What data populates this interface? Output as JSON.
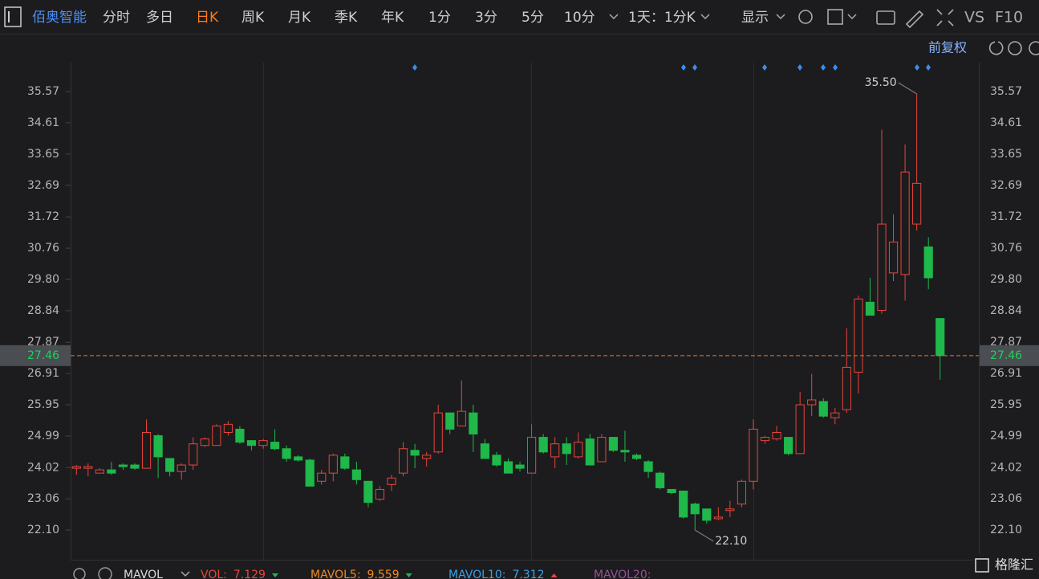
{
  "toolbar": {
    "stock": "佰奥智能",
    "periods": [
      "分时",
      "多日",
      "日K",
      "周K",
      "月K",
      "季K",
      "年K",
      "1分",
      "3分",
      "5分",
      "10分"
    ],
    "active": "日K",
    "range": "1天：1分K",
    "display": "显示",
    "vs": "VS",
    "f10": "F10"
  },
  "adjust": "前复权",
  "chart_data": {
    "type": "candlestick",
    "up_color": "#e8453c",
    "down_color": "#1fb84a",
    "last_color": "#e8742a",
    "ylim": [
      21.19,
      36.41
    ],
    "yticks": [
      35.57,
      34.61,
      33.65,
      32.69,
      31.72,
      30.76,
      {
        "value": 29.8,
        "label": "29.80"
      },
      28.84,
      27.87,
      26.91,
      25.95,
      24.99,
      24.02,
      23.06,
      {
        "value": 22.1,
        "label": "22.10"
      }
    ],
    "open": [
      24.0,
      24.0,
      23.85,
      23.95,
      24.1,
      24.1,
      24.0,
      25.0,
      24.3,
      23.9,
      24.1,
      24.7,
      24.7,
      25.1,
      25.2,
      24.85,
      24.7,
      24.8,
      24.6,
      24.35,
      24.25,
      23.6,
      23.85,
      24.35,
      23.95,
      23.6,
      23.05,
      23.5,
      23.85,
      24.55,
      24.3,
      24.5,
      25.7,
      25.3,
      25.7,
      24.75,
      24.4,
      24.2,
      24.1,
      23.85,
      24.95,
      24.35,
      24.75,
      24.35,
      24.9,
      24.2,
      24.95,
      24.55,
      24.4,
      24.2,
      23.85,
      23.35,
      23.3,
      22.9,
      22.75,
      22.45,
      22.7,
      22.9,
      23.6,
      24.85,
      24.9,
      24.95,
      24.45,
      25.95,
      26.05,
      25.55,
      25.8,
      26.95,
      29.1,
      28.85,
      30.0,
      29.95,
      31.5,
      30.8,
      28.6
    ],
    "high": [
      24.1,
      24.15,
      24.0,
      24.2,
      24.15,
      24.15,
      25.5,
      25.05,
      24.3,
      24.15,
      24.95,
      24.95,
      25.35,
      25.45,
      25.3,
      24.85,
      24.9,
      25.2,
      24.7,
      24.4,
      24.3,
      23.95,
      24.45,
      24.45,
      24.2,
      23.6,
      23.45,
      23.8,
      24.8,
      24.75,
      24.5,
      25.95,
      25.7,
      26.7,
      25.95,
      24.9,
      24.5,
      24.3,
      24.2,
      25.35,
      25.05,
      24.95,
      24.95,
      25.1,
      25.05,
      25.05,
      24.95,
      25.15,
      24.45,
      24.25,
      23.9,
      23.35,
      23.3,
      22.95,
      22.75,
      22.8,
      23.0,
      23.65,
      25.5,
      25.0,
      25.3,
      24.95,
      26.35,
      26.9,
      26.15,
      25.85,
      28.3,
      29.3,
      29.85,
      34.4,
      31.8,
      33.95,
      35.5,
      31.1,
      28.6
    ],
    "low": [
      23.8,
      23.75,
      23.85,
      23.8,
      23.95,
      23.95,
      24.0,
      23.7,
      23.75,
      23.65,
      23.95,
      24.65,
      24.7,
      25.0,
      24.75,
      24.55,
      24.6,
      24.55,
      24.2,
      24.2,
      23.45,
      23.5,
      23.6,
      23.95,
      23.5,
      22.8,
      23.0,
      23.3,
      23.75,
      24.0,
      24.05,
      24.45,
      25.05,
      25.3,
      24.5,
      24.3,
      24.05,
      23.85,
      23.9,
      23.85,
      24.45,
      24.0,
      24.1,
      24.3,
      24.1,
      24.2,
      24.5,
      24.2,
      24.25,
      23.7,
      23.35,
      23.2,
      22.45,
      22.1,
      22.3,
      22.4,
      22.5,
      22.8,
      23.35,
      24.75,
      24.85,
      24.4,
      24.45,
      25.6,
      25.55,
      25.35,
      25.7,
      26.3,
      28.7,
      28.75,
      29.75,
      29.15,
      31.3,
      29.5,
      26.72
    ],
    "close": [
      24.05,
      24.05,
      23.95,
      23.85,
      24.05,
      24.0,
      25.1,
      24.35,
      23.9,
      24.1,
      24.75,
      24.9,
      25.3,
      25.35,
      24.8,
      24.7,
      24.85,
      24.6,
      24.3,
      24.25,
      23.45,
      23.85,
      24.4,
      24.0,
      23.65,
      22.95,
      23.35,
      23.7,
      24.6,
      24.4,
      24.4,
      25.7,
      25.2,
      25.75,
      25.05,
      24.3,
      24.1,
      23.85,
      24.0,
      24.95,
      24.5,
      24.75,
      24.45,
      24.8,
      24.1,
      24.95,
      24.55,
      24.5,
      24.3,
      23.9,
      23.4,
      23.25,
      22.5,
      22.6,
      22.4,
      22.5,
      22.75,
      23.6,
      25.2,
      24.95,
      25.1,
      24.45,
      25.95,
      26.1,
      25.6,
      25.7,
      27.1,
      29.2,
      28.7,
      31.5,
      30.95,
      33.1,
      32.75,
      29.85,
      27.46
    ],
    "last": 27.46,
    "annotations": [
      {
        "value": 35.5,
        "label": "35.50"
      },
      {
        "value": 22.1,
        "label": "22.10"
      }
    ]
  },
  "indicators": {
    "name": "MAVOL",
    "items": [
      {
        "name": "VOL:",
        "value": "7.129",
        "color": "#e8453c"
      },
      {
        "name": "MAVOL5:",
        "value": "9.559",
        "color": "#f08a24"
      },
      {
        "name": "MAVOL10:",
        "value": "7.312",
        "color": "#3aa0e6"
      },
      {
        "name": "MAVOL20:",
        "value": "",
        "color": "#9a4f9a"
      }
    ]
  },
  "watermark": "格隆汇"
}
